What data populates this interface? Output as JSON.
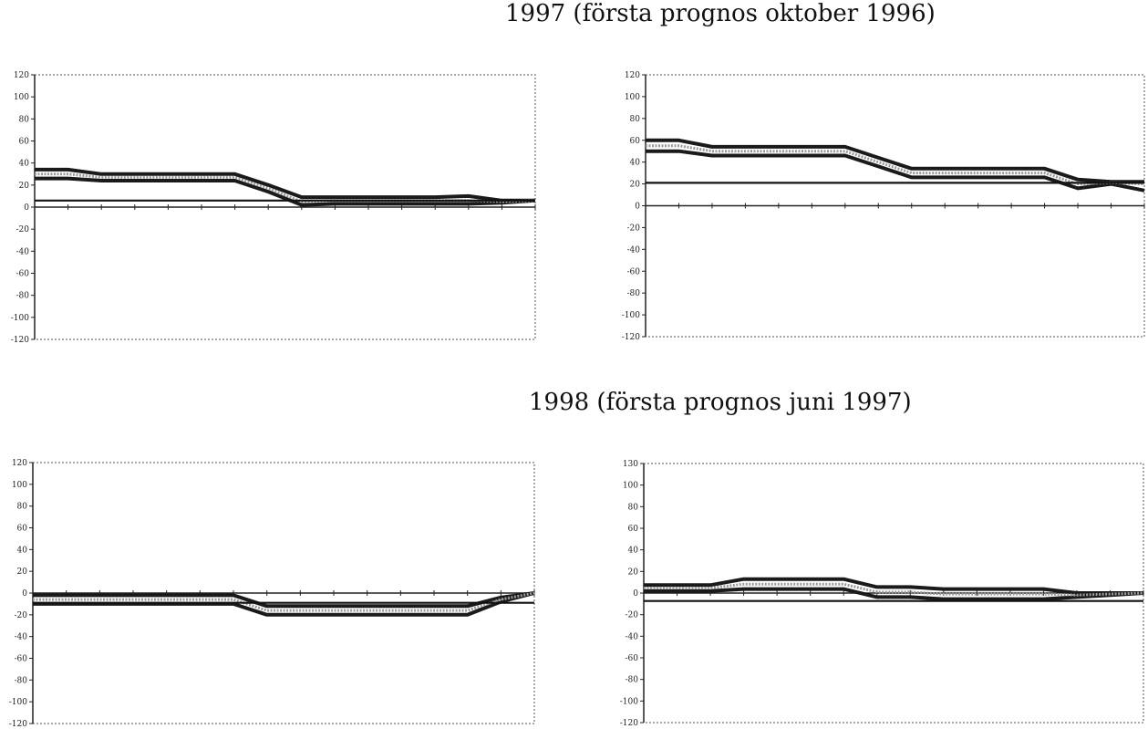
{
  "sections": [
    {
      "title": "1997 (första prognos oktober 1996)"
    },
    {
      "title": "1998 (första prognos juni 1997)"
    }
  ],
  "chart_data": [
    {
      "type": "line",
      "section": 0,
      "title": "",
      "xlabel": "",
      "ylabel": "",
      "ylim": [
        -120,
        120
      ],
      "yticks": [
        "120",
        "100",
        "80",
        "60",
        "40",
        "20",
        "0",
        "-20",
        "-40",
        "-60",
        "-80",
        "-100",
        "-120"
      ],
      "x": [
        0,
        1,
        2,
        3,
        4,
        5,
        6,
        7,
        8,
        9,
        10,
        11,
        12,
        13,
        14,
        15
      ],
      "series": [
        {
          "name": "band-upper",
          "style": "dark",
          "values": [
            34,
            34,
            30,
            30,
            30,
            30,
            30,
            20,
            9,
            9,
            9,
            9,
            9,
            10,
            6,
            6
          ]
        },
        {
          "name": "band-lower",
          "style": "dark",
          "values": [
            26,
            26,
            24,
            24,
            24,
            24,
            24,
            14,
            2,
            3,
            3,
            3,
            3,
            3,
            4,
            6
          ]
        },
        {
          "name": "mean",
          "style": "grey-dotted",
          "values": [
            30,
            30,
            27,
            27,
            27,
            27,
            27,
            17,
            5,
            6,
            6,
            6,
            6,
            6,
            5,
            6
          ]
        },
        {
          "name": "outcome",
          "style": "reference",
          "values": [
            6,
            6,
            6,
            6,
            6,
            6,
            6,
            6,
            6,
            6,
            6,
            6,
            6,
            6,
            6,
            6
          ]
        }
      ]
    },
    {
      "type": "line",
      "section": 0,
      "title": "",
      "xlabel": "",
      "ylabel": "",
      "ylim": [
        -120,
        120
      ],
      "yticks": [
        "120",
        "100",
        "80",
        "60",
        "40",
        "20",
        "0",
        "-20",
        "-40",
        "-60",
        "-80",
        "-100",
        "-120"
      ],
      "x": [
        0,
        1,
        2,
        3,
        4,
        5,
        6,
        7,
        8,
        9,
        10,
        11,
        12,
        13,
        14,
        15
      ],
      "series": [
        {
          "name": "band-upper",
          "style": "dark",
          "values": [
            60,
            60,
            54,
            54,
            54,
            54,
            54,
            44,
            34,
            34,
            34,
            34,
            34,
            24,
            22,
            22
          ]
        },
        {
          "name": "band-lower",
          "style": "dark",
          "values": [
            50,
            50,
            46,
            46,
            46,
            46,
            46,
            36,
            26,
            26,
            26,
            26,
            26,
            16,
            20,
            14
          ]
        },
        {
          "name": "mean",
          "style": "grey-dotted",
          "values": [
            55,
            55,
            50,
            50,
            50,
            50,
            50,
            40,
            30,
            30,
            30,
            30,
            30,
            20,
            21,
            20
          ]
        },
        {
          "name": "outcome",
          "style": "reference",
          "values": [
            21,
            21,
            21,
            21,
            21,
            21,
            21,
            21,
            21,
            21,
            21,
            21,
            21,
            21,
            21,
            21
          ]
        }
      ]
    },
    {
      "type": "line",
      "section": 1,
      "title": "",
      "xlabel": "",
      "ylabel": "",
      "ylim": [
        -120,
        120
      ],
      "yticks": [
        "120",
        "100",
        "80",
        "60",
        "40",
        "20",
        "0",
        "-20",
        "-40",
        "-60",
        "-80",
        "-100",
        "-120"
      ],
      "x": [
        0,
        1,
        2,
        3,
        4,
        5,
        6,
        7,
        8,
        9,
        10,
        11,
        12,
        13,
        14,
        15
      ],
      "series": [
        {
          "name": "band-upper",
          "style": "dark",
          "values": [
            -2,
            -2,
            -2,
            -2,
            -2,
            -2,
            -2,
            -12,
            -12,
            -12,
            -12,
            -12,
            -12,
            -12,
            -4,
            0
          ]
        },
        {
          "name": "band-lower",
          "style": "dark",
          "values": [
            -10,
            -10,
            -10,
            -10,
            -10,
            -10,
            -10,
            -20,
            -20,
            -20,
            -20,
            -20,
            -20,
            -20,
            -8,
            0
          ]
        },
        {
          "name": "mean",
          "style": "grey-dotted",
          "values": [
            -6,
            -6,
            -6,
            -6,
            -6,
            -6,
            -6,
            -16,
            -16,
            -16,
            -16,
            -16,
            -16,
            -16,
            -6,
            0
          ]
        },
        {
          "name": "outcome",
          "style": "reference",
          "values": [
            -9,
            -9,
            -9,
            -9,
            -9,
            -9,
            -9,
            -9,
            -9,
            -9,
            -9,
            -9,
            -9,
            -9,
            -9,
            -9
          ]
        }
      ]
    },
    {
      "type": "line",
      "section": 1,
      "title": "",
      "xlabel": "",
      "ylabel": "",
      "ylim": [
        -130,
        130
      ],
      "yticks": [
        "130",
        "100",
        "80",
        "60",
        "40",
        "20",
        "0",
        "-20",
        "-40",
        "-60",
        "-80",
        "-100",
        "-120"
      ],
      "x": [
        0,
        1,
        2,
        3,
        4,
        5,
        6,
        7,
        8,
        9,
        10,
        11,
        12,
        13,
        14,
        15
      ],
      "series": [
        {
          "name": "band-upper",
          "style": "dark",
          "values": [
            8,
            8,
            8,
            14,
            14,
            14,
            14,
            6,
            6,
            4,
            4,
            4,
            4,
            0,
            0,
            0
          ]
        },
        {
          "name": "band-lower",
          "style": "dark",
          "values": [
            2,
            2,
            2,
            4,
            4,
            4,
            4,
            -4,
            -4,
            -6,
            -6,
            -6,
            -6,
            -4,
            -2,
            0
          ]
        },
        {
          "name": "mean",
          "style": "grey-dotted",
          "values": [
            5,
            5,
            5,
            9,
            9,
            9,
            9,
            1,
            1,
            -1,
            -1,
            -1,
            -1,
            -2,
            -1,
            0
          ]
        },
        {
          "name": "outcome",
          "style": "reference",
          "values": [
            -8,
            -8,
            -8,
            -8,
            -8,
            -8,
            -8,
            -8,
            -8,
            -8,
            -8,
            -8,
            -8,
            -8,
            -8,
            -8
          ]
        }
      ]
    }
  ]
}
